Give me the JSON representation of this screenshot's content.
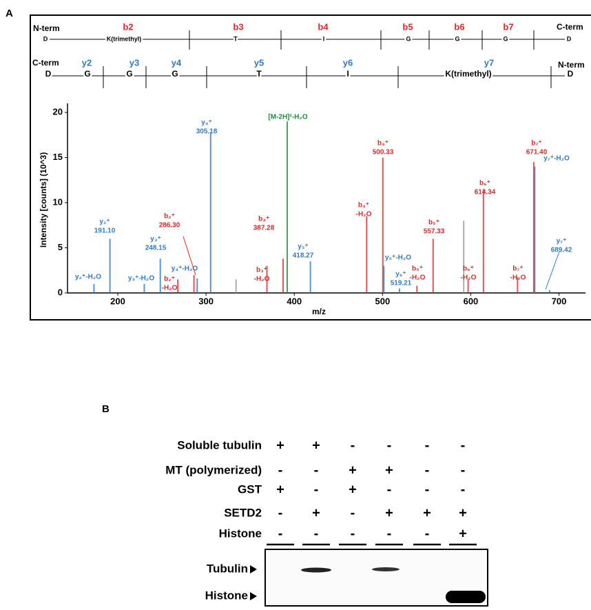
{
  "panel_labels": [
    "A",
    "B"
  ],
  "sequence": {
    "b_row": {
      "left": "N-term",
      "right": "C-term",
      "ions": [
        "b2",
        "b3",
        "b4",
        "b5",
        "b6",
        "b7"
      ],
      "residues": [
        "D",
        "K(trimethyl)",
        "T",
        "I",
        "G",
        "G",
        "G",
        "D"
      ]
    },
    "y_row": {
      "left": "C-term",
      "right": "N-term",
      "ions": [
        "y2",
        "y3",
        "y4",
        "y5",
        "y6",
        "y7"
      ],
      "residues": [
        "D",
        "G",
        "G",
        "G",
        "T",
        "I",
        "K(trimethyl)",
        "D"
      ]
    }
  },
  "chart_data": {
    "type": "spectrum",
    "x_label": "m/z",
    "y_label": "Intensity [counts] (10^3)",
    "xlim": [
      143,
      730
    ],
    "xticks": [
      200,
      300,
      400,
      500,
      600,
      700
    ],
    "ylim": [
      0,
      21
    ],
    "yticks": [
      0,
      5,
      10,
      15,
      20
    ],
    "x": [
      173,
      191.1,
      230,
      248.15,
      268,
      286.3,
      290,
      305.18,
      334,
      369,
      387.28,
      392,
      418.27,
      482,
      500.33,
      501.5,
      519.21,
      539,
      557.33,
      592,
      597,
      614.34,
      653,
      671.4,
      672.5,
      689.42
    ],
    "values": [
      1.0,
      6.0,
      1.0,
      3.8,
      1.5,
      2.0,
      1.6,
      17.8,
      1.5,
      3.0,
      3.8,
      19.0,
      3.5,
      8.5,
      15.0,
      3.0,
      0.5,
      0.8,
      6.0,
      8.0,
      1.5,
      11.5,
      1.7,
      14.5,
      14.0,
      0.3
    ],
    "colors": [
      "#2e7bc4",
      "#2e7bc4",
      "#2e7bc4",
      "#2e7bc4",
      "#e8242a",
      "#e8242a",
      "#2e7bc4",
      "#2e7bc4",
      "#999999",
      "#e8242a",
      "#e8242a",
      "#1b8a3c",
      "#2e7bc4",
      "#e8242a",
      "#e8242a",
      "#2e7bc4",
      "#2e7bc4",
      "#e8242a",
      "#e8242a",
      "#999999",
      "#e8242a",
      "#e8242a",
      "#e8242a",
      "#e8242a",
      "#2e7bc4",
      "#2e7bc4"
    ],
    "labels": [
      [
        "y₂⁺-H₂O"
      ],
      [
        "y₂⁺"
      ],
      [
        "y₃⁺-H₂O"
      ],
      [
        "y₃⁺"
      ],
      [
        "b₂⁺",
        "-H₂O"
      ],
      [
        "b₂⁺"
      ],
      [
        "y₄⁺-H₂O"
      ],
      [
        "y₄⁺"
      ],
      null,
      [
        "b₃⁺",
        "-H₂O"
      ],
      [
        "b₃⁺"
      ],
      [
        "[M-2H]²-H₂O"
      ],
      [
        "y₅⁺"
      ],
      [
        "b₄⁺",
        "-H₂O"
      ],
      [
        "b₄⁺"
      ],
      [
        "y₅⁺-H₂O"
      ],
      [
        "y₆⁺"
      ],
      [
        "b₅⁺",
        "-H₂O"
      ],
      [
        "b₅⁺"
      ],
      null,
      [
        "b₆⁺",
        "-H₂O"
      ],
      [
        "b₆⁺"
      ],
      [
        "b₇⁺",
        "-H₂O"
      ],
      [
        "b₇⁺"
      ],
      [
        "y₇⁺-H₂O"
      ],
      [
        "y₇⁺"
      ]
    ],
    "x_labels": [
      null,
      "191.10",
      null,
      "248.15",
      null,
      "286.30",
      null,
      "305.18",
      null,
      null,
      "387.28",
      null,
      "418.27",
      null,
      "500.33",
      null,
      "519.21",
      null,
      "557.33",
      null,
      null,
      "614.34",
      null,
      "671.40",
      null,
      "689.42"
    ]
  },
  "blot": {
    "rows": [
      {
        "label": "Soluble tubulin",
        "signs": [
          "+",
          "+",
          "-",
          "-",
          "-",
          "-"
        ]
      },
      {
        "label": "MT (polymerized)",
        "signs": [
          "-",
          "-",
          "+",
          "+",
          "-",
          "-"
        ]
      },
      {
        "label": "GST",
        "signs": [
          "+",
          "-",
          "+",
          "-",
          "-",
          "-"
        ]
      },
      {
        "label": "SETD2",
        "signs": [
          "-",
          "+",
          "-",
          "+",
          "+",
          "+"
        ]
      },
      {
        "label": "Histone",
        "signs": [
          "-",
          "-",
          "-",
          "-",
          "-",
          "+"
        ]
      }
    ],
    "band_labels": [
      "Tubulin",
      "Histone"
    ]
  }
}
